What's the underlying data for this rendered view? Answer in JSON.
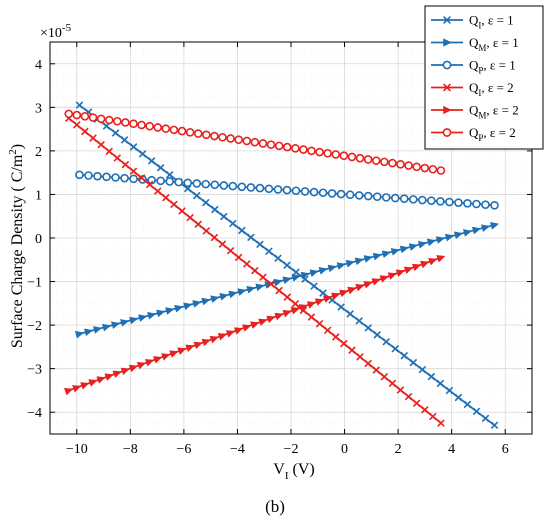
{
  "chart_data": {
    "type": "line",
    "title": "",
    "xlabel_main": "V",
    "xlabel_sub": "I",
    "xlabel_unit": " (V)",
    "ylabel_main": "Surface Charge Density ( C/m",
    "ylabel_sup": "2",
    "ylabel_end": ")",
    "y_multiplier_base": "×10",
    "y_multiplier_exp": "-5",
    "caption": "(b)",
    "xlim": [
      -11,
      7
    ],
    "ylim": [
      -4.5,
      4.5
    ],
    "xticks": [
      -10,
      -8,
      -6,
      -4,
      -2,
      0,
      2,
      4,
      6
    ],
    "yticks": [
      -4,
      -3,
      -2,
      -1,
      0,
      1,
      2,
      3,
      4
    ],
    "grid": true,
    "legend_position": "top-right",
    "colors": {
      "blue": "#1f6fb4",
      "red": "#e8201e"
    },
    "series": [
      {
        "name": "Q",
        "name_sub": "I",
        "name_rest": ", ε = 1",
        "color": "#1f6fb4",
        "marker": "x",
        "x": [
          -9.9,
          5.6
        ],
        "y": [
          3.05,
          -4.3
        ]
      },
      {
        "name": "Q",
        "name_sub": "M",
        "name_rest": ", ε = 1",
        "color": "#1f6fb4",
        "marker": "triangle",
        "x": [
          -9.9,
          5.6
        ],
        "y": [
          -2.2,
          0.3
        ]
      },
      {
        "name": "Q",
        "name_sub": "P",
        "name_rest": ", ε = 1",
        "color": "#1f6fb4",
        "marker": "circle",
        "x": [
          -9.9,
          5.6
        ],
        "y": [
          1.45,
          0.75
        ]
      },
      {
        "name": "Q",
        "name_sub": "I",
        "name_rest": ", ε = 2",
        "color": "#e8201e",
        "marker": "x",
        "x": [
          -10.3,
          3.6
        ],
        "y": [
          2.75,
          -4.25
        ]
      },
      {
        "name": "Q",
        "name_sub": "M",
        "name_rest": ", ε = 2",
        "color": "#e8201e",
        "marker": "triangle",
        "x": [
          -10.3,
          3.6
        ],
        "y": [
          -3.5,
          -0.45
        ]
      },
      {
        "name": "Q",
        "name_sub": "P",
        "name_rest": ", ε = 2",
        "color": "#e8201e",
        "marker": "circle",
        "x": [
          -10.3,
          3.6
        ],
        "y": [
          2.85,
          1.55
        ]
      }
    ]
  }
}
